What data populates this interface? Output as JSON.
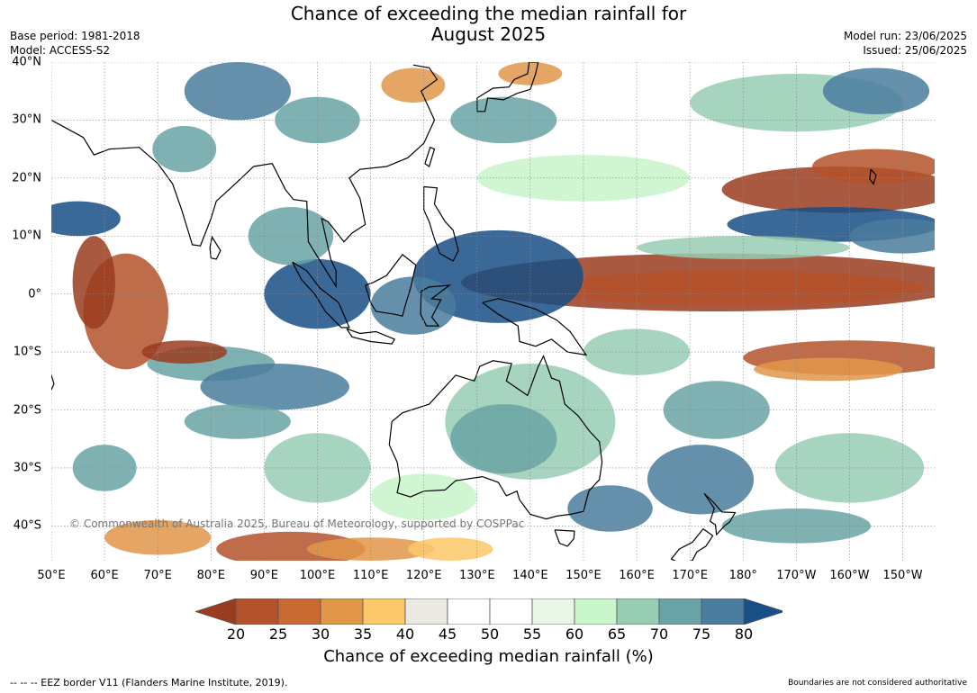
{
  "header": {
    "title_line1": "Chance of exceeding the median rainfall for",
    "title_line2": "August 2025",
    "base_period": "Base period: 1981-2018",
    "model": "Model: ACCESS-S2",
    "model_run": "Model run: 23/06/2025",
    "issued": "Issued: 25/06/2025"
  },
  "map": {
    "copyright": "© Commonwealth of Australia 2025, Bureau of Meteorology, supported by COSPPac",
    "lat_labels": [
      "40°N",
      "30°N",
      "20°N",
      "10°N",
      "0°",
      "10°S",
      "20°S",
      "30°S",
      "40°S"
    ],
    "lat_values": [
      40,
      30,
      20,
      10,
      0,
      -10,
      -20,
      -30,
      -40
    ],
    "lon_labels": [
      "50°E",
      "60°E",
      "70°E",
      "80°E",
      "90°E",
      "100°E",
      "110°E",
      "120°E",
      "130°E",
      "140°E",
      "150°E",
      "160°E",
      "170°E",
      "180°",
      "170°W",
      "160°W",
      "150°W"
    ],
    "lon_values": [
      50,
      60,
      70,
      80,
      90,
      100,
      110,
      120,
      130,
      140,
      150,
      160,
      170,
      180,
      190,
      200,
      210
    ],
    "extent": {
      "lon_min": 50,
      "lon_max": 216,
      "lat_min": -46,
      "lat_max": 40
    },
    "gridlines": true
  },
  "colorbar": {
    "ticks": [
      "20",
      "25",
      "30",
      "35",
      "40",
      "45",
      "50",
      "55",
      "60",
      "65",
      "70",
      "75",
      "80"
    ],
    "colors": [
      "#9a3c1e",
      "#b4522c",
      "#ca6a33",
      "#e0974a",
      "#fdc86a",
      "#ece9e4",
      "#ffffff",
      "#ffffff",
      "#e8f7e7",
      "#c8f5c9",
      "#97cdb4",
      "#6aa3a5",
      "#4a7c9e",
      "#174f86"
    ],
    "label": "Chance of exceeding median rainfall (%)"
  },
  "footer": {
    "eez": "--  --  -- EEZ border V11 (Flanders Marine Institute, 2019).",
    "boundaries": "Boundaries are not considered authoritative"
  }
}
